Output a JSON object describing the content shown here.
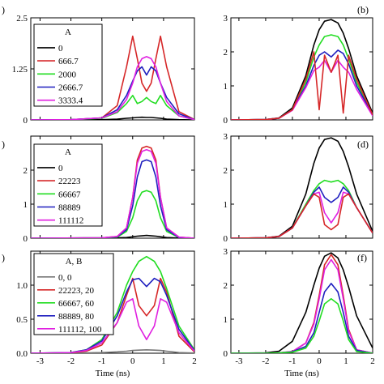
{
  "figure": {
    "xlabel": "Time (ns)",
    "colors": {
      "black": "#000000",
      "red": "#d62728",
      "green": "#22dd22",
      "blue": "#1f1fbf",
      "magenta": "#e020e0",
      "gray": "#777777"
    }
  },
  "chart_data": [
    {
      "panel": "(a)",
      "label_visible": ")",
      "type": "line",
      "xlim": [
        -3.3,
        2
      ],
      "ylim": [
        0,
        2.5
      ],
      "xticks": [
        -3,
        -2,
        -1,
        0,
        1,
        2
      ],
      "yticks": [
        0,
        1.25,
        2.5
      ],
      "ytick_labels": [
        "0",
        "1.25",
        "2.5"
      ],
      "legend": {
        "title": "A",
        "placement": "top-left"
      },
      "x": [
        -3.3,
        -2,
        -1,
        -0.5,
        -0.2,
        0,
        0.15,
        0.3,
        0.45,
        0.6,
        0.75,
        0.9,
        1.1,
        1.5,
        2
      ],
      "series": [
        {
          "name": "0",
          "color": "black",
          "values": [
            0,
            0,
            0.005,
            0.02,
            0.04,
            0.05,
            0.06,
            0.065,
            0.06,
            0.06,
            0.05,
            0.04,
            0.02,
            0.005,
            0
          ]
        },
        {
          "name": "666.7",
          "color": "red",
          "values": [
            0,
            0.005,
            0.05,
            0.35,
            1.3,
            2.05,
            1.5,
            0.9,
            0.7,
            0.9,
            1.5,
            2.05,
            1.3,
            0.2,
            0.01
          ]
        },
        {
          "name": "2000",
          "color": "green",
          "values": [
            0,
            0.005,
            0.04,
            0.18,
            0.4,
            0.6,
            0.4,
            0.45,
            0.55,
            0.45,
            0.4,
            0.6,
            0.35,
            0.1,
            0.005
          ]
        },
        {
          "name": "2666.7",
          "color": "blue",
          "values": [
            0,
            0.005,
            0.05,
            0.25,
            0.6,
            0.95,
            1.2,
            1.3,
            1.1,
            1.3,
            1.2,
            0.9,
            0.55,
            0.15,
            0.005
          ]
        },
        {
          "name": "3333.4",
          "color": "magenta",
          "values": [
            0,
            0.005,
            0.05,
            0.2,
            0.5,
            0.9,
            1.3,
            1.5,
            1.55,
            1.5,
            1.3,
            0.9,
            0.45,
            0.1,
            0.005
          ]
        }
      ]
    },
    {
      "panel": "(b)",
      "label_visible": "(b)",
      "type": "line",
      "xlim": [
        -3.3,
        2
      ],
      "ylim": [
        0,
        3
      ],
      "yticks": [
        0,
        1,
        2,
        3
      ],
      "x": [
        -3.3,
        -2,
        -1.5,
        -1,
        -0.5,
        -0.2,
        0,
        0.2,
        0.45,
        0.7,
        0.9,
        1.1,
        1.4,
        2
      ],
      "series": [
        {
          "name": "",
          "color": "black",
          "values": [
            0,
            0.01,
            0.06,
            0.35,
            1.3,
            2.2,
            2.65,
            2.9,
            2.95,
            2.85,
            2.55,
            2.1,
            1.3,
            0.2
          ]
        },
        {
          "name": "",
          "color": "green",
          "values": [
            0,
            0.01,
            0.05,
            0.3,
            1.1,
            1.85,
            2.2,
            2.45,
            2.5,
            2.45,
            2.2,
            1.8,
            1.1,
            0.15
          ]
        },
        {
          "name": "",
          "color": "blue",
          "values": [
            0,
            0.01,
            0.05,
            0.3,
            1.0,
            1.6,
            1.9,
            2.0,
            1.85,
            2.05,
            1.95,
            1.65,
            1.0,
            0.15
          ]
        },
        {
          "name": "",
          "color": "magenta",
          "values": [
            0,
            0.01,
            0.05,
            0.28,
            0.95,
            1.45,
            1.55,
            1.75,
            1.4,
            1.75,
            1.55,
            1.4,
            0.9,
            0.12
          ]
        },
        {
          "name": "",
          "color": "red",
          "values": [
            0,
            0.01,
            0.05,
            0.3,
            1.2,
            2.0,
            0.3,
            1.9,
            1.4,
            1.9,
            0.2,
            1.9,
            1.2,
            0.15
          ]
        }
      ]
    },
    {
      "panel": "(c)",
      "label_visible": ")",
      "type": "line",
      "xlim": [
        -3.3,
        2
      ],
      "ylim": [
        0,
        3
      ],
      "yticks": [
        0,
        1,
        2
      ],
      "legend": {
        "title": "A",
        "placement": "top-left"
      },
      "x": [
        -3.3,
        -1,
        -0.5,
        -0.2,
        0,
        0.15,
        0.3,
        0.45,
        0.6,
        0.75,
        0.9,
        1.1,
        1.5,
        2
      ],
      "series": [
        {
          "name": "0",
          "color": "black",
          "values": [
            0,
            0.005,
            0.01,
            0.02,
            0.04,
            0.06,
            0.07,
            0.08,
            0.07,
            0.06,
            0.04,
            0.02,
            0.005,
            0
          ]
        },
        {
          "name": "22223",
          "color": "red",
          "values": [
            0,
            0.01,
            0.05,
            0.3,
            1.2,
            2.3,
            2.65,
            2.7,
            2.65,
            2.3,
            1.2,
            0.3,
            0.03,
            0
          ]
        },
        {
          "name": "66667",
          "color": "green",
          "values": [
            0,
            0.01,
            0.03,
            0.2,
            0.6,
            1.1,
            1.35,
            1.4,
            1.35,
            1.1,
            0.6,
            0.2,
            0.02,
            0
          ]
        },
        {
          "name": "88889",
          "color": "blue",
          "values": [
            0,
            0.01,
            0.04,
            0.25,
            0.95,
            1.8,
            2.25,
            2.3,
            2.25,
            1.8,
            0.95,
            0.25,
            0.02,
            0
          ]
        },
        {
          "name": "111112",
          "color": "magenta",
          "values": [
            0,
            0.01,
            0.05,
            0.3,
            1.2,
            2.2,
            2.55,
            2.6,
            2.55,
            2.2,
            1.2,
            0.3,
            0.03,
            0
          ]
        }
      ]
    },
    {
      "panel": "(d)",
      "label_visible": "(d)",
      "type": "line",
      "xlim": [
        -3.3,
        2
      ],
      "ylim": [
        0,
        3
      ],
      "yticks": [
        0,
        1,
        2,
        3
      ],
      "x": [
        -3.3,
        -2,
        -1.5,
        -1,
        -0.5,
        -0.2,
        0,
        0.2,
        0.45,
        0.7,
        0.9,
        1.1,
        1.4,
        2
      ],
      "series": [
        {
          "name": "",
          "color": "black",
          "values": [
            0,
            0.01,
            0.06,
            0.35,
            1.3,
            2.2,
            2.65,
            2.9,
            2.95,
            2.85,
            2.55,
            2.1,
            1.3,
            0.2
          ]
        },
        {
          "name": "",
          "color": "green",
          "values": [
            0,
            0.01,
            0.05,
            0.3,
            1.0,
            1.4,
            1.6,
            1.7,
            1.65,
            1.7,
            1.6,
            1.4,
            0.9,
            0.15
          ]
        },
        {
          "name": "",
          "color": "blue",
          "values": [
            0,
            0.01,
            0.05,
            0.3,
            0.95,
            1.35,
            1.5,
            1.2,
            1.05,
            1.2,
            1.5,
            1.35,
            0.9,
            0.15
          ]
        },
        {
          "name": "",
          "color": "magenta",
          "values": [
            0,
            0.01,
            0.05,
            0.3,
            0.95,
            1.3,
            1.35,
            0.75,
            0.45,
            0.75,
            1.35,
            1.3,
            0.9,
            0.15
          ]
        },
        {
          "name": "",
          "color": "red",
          "values": [
            0,
            0.01,
            0.05,
            0.3,
            0.95,
            1.3,
            1.2,
            0.4,
            0.25,
            0.4,
            1.2,
            1.3,
            0.9,
            0.15
          ]
        }
      ]
    },
    {
      "panel": "(e)",
      "label_visible": ")",
      "type": "line",
      "xlim": [
        -3.3,
        2
      ],
      "ylim": [
        0,
        1.5
      ],
      "yticks": [
        0,
        0.5,
        1
      ],
      "ytick_labels": [
        "0.0",
        "0.5",
        "1.0"
      ],
      "xtick_labels": [
        "-3",
        "-2",
        "-1",
        "0",
        "1",
        "2"
      ],
      "xlabel": "Time (ns)",
      "legend": {
        "title": "A, B",
        "placement": "top-left"
      },
      "x": [
        -3.3,
        -2,
        -1.5,
        -1,
        -0.5,
        -0.2,
        0,
        0.2,
        0.45,
        0.7,
        0.9,
        1.1,
        1.5,
        2
      ],
      "series": [
        {
          "name": "0, 0",
          "color": "gray",
          "values": [
            0,
            0.002,
            0.005,
            0.01,
            0.02,
            0.03,
            0.04,
            0.045,
            0.05,
            0.045,
            0.04,
            0.03,
            0.01,
            0.002
          ]
        },
        {
          "name": "22223, 20",
          "color": "red",
          "values": [
            0,
            0.005,
            0.03,
            0.12,
            0.45,
            0.85,
            1.1,
            0.7,
            0.55,
            0.7,
            1.1,
            0.9,
            0.25,
            0.02
          ]
        },
        {
          "name": "66667, 60",
          "color": "green",
          "values": [
            0,
            0.01,
            0.05,
            0.2,
            0.6,
            1.0,
            1.2,
            1.35,
            1.42,
            1.35,
            1.2,
            0.95,
            0.4,
            0.05
          ]
        },
        {
          "name": "88889, 80",
          "color": "blue",
          "values": [
            0,
            0.01,
            0.05,
            0.18,
            0.55,
            0.9,
            1.08,
            1.1,
            0.98,
            1.1,
            1.05,
            0.85,
            0.35,
            0.04
          ]
        },
        {
          "name": "111112, 100",
          "color": "magenta",
          "values": [
            0,
            0.008,
            0.04,
            0.15,
            0.45,
            0.75,
            0.8,
            0.4,
            0.2,
            0.4,
            0.8,
            0.75,
            0.3,
            0.03
          ]
        }
      ]
    },
    {
      "panel": "(f)",
      "label_visible": "(f)",
      "type": "line",
      "xlim": [
        -3.3,
        2
      ],
      "ylim": [
        0,
        3
      ],
      "yticks": [
        0,
        1,
        2,
        3
      ],
      "xtick_labels": [
        "-3",
        "-2",
        "-1",
        "0",
        "1",
        "2"
      ],
      "xlabel": "Time (ns)",
      "x": [
        -3.3,
        -2,
        -1.5,
        -1,
        -0.5,
        -0.2,
        0,
        0.2,
        0.45,
        0.7,
        0.9,
        1.1,
        1.4,
        2
      ],
      "series": [
        {
          "name": "",
          "color": "black",
          "values": [
            0,
            0.01,
            0.06,
            0.35,
            1.2,
            2.0,
            2.5,
            2.85,
            2.95,
            2.8,
            2.45,
            1.95,
            1.1,
            0.15
          ]
        },
        {
          "name": "",
          "color": "red",
          "values": [
            0,
            0.0,
            0.01,
            0.05,
            0.3,
            0.9,
            1.7,
            2.6,
            2.9,
            2.6,
            1.7,
            0.7,
            0.1,
            0.0
          ]
        },
        {
          "name": "",
          "color": "magenta",
          "values": [
            0,
            0.0,
            0.01,
            0.05,
            0.3,
            0.85,
            1.6,
            2.45,
            2.75,
            2.45,
            1.6,
            0.65,
            0.1,
            0.0
          ]
        },
        {
          "name": "",
          "color": "blue",
          "values": [
            0,
            0.0,
            0.01,
            0.04,
            0.2,
            0.6,
            1.2,
            1.8,
            2.05,
            1.8,
            1.2,
            0.5,
            0.08,
            0.0
          ]
        },
        {
          "name": "",
          "color": "green",
          "values": [
            0,
            0.0,
            0.01,
            0.03,
            0.15,
            0.5,
            0.95,
            1.45,
            1.6,
            1.45,
            0.95,
            0.4,
            0.05,
            0.0
          ]
        }
      ]
    }
  ]
}
